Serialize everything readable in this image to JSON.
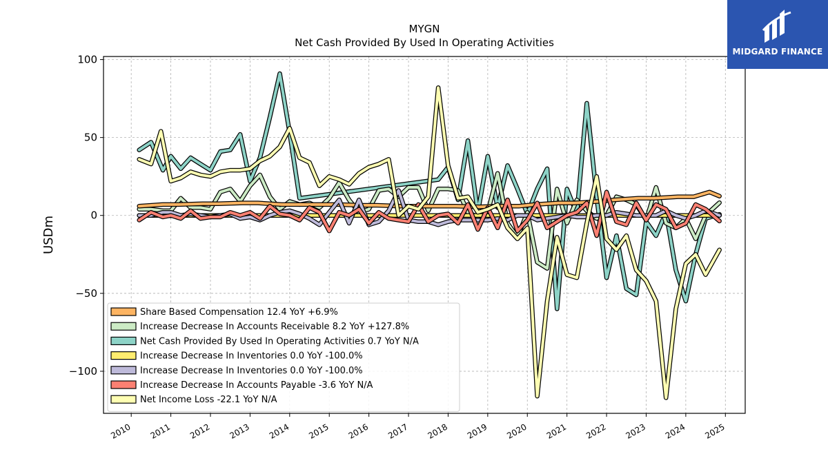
{
  "brand": {
    "name": "MIDGARD FINANCE",
    "icon": "midgard-logo-icon",
    "color": "#2b55b0"
  },
  "chart_data": {
    "type": "line",
    "title": "MYGN",
    "subtitle": "Net Cash Provided By Used In Operating Activities",
    "ylabel": "USDm",
    "xlabel": "",
    "xlim": [
      2009.3,
      2025.5
    ],
    "ylim": [
      -127,
      102
    ],
    "x_ticks": [
      2010,
      2011,
      2012,
      2013,
      2014,
      2015,
      2016,
      2017,
      2018,
      2019,
      2020,
      2021,
      2022,
      2023,
      2024,
      2025
    ],
    "y_ticks": [
      100,
      50,
      0,
      -50,
      -100
    ],
    "y_tick_labels": [
      "100",
      "50",
      "0",
      "−50",
      "−100"
    ],
    "grid": true,
    "legend_position": "lower-left",
    "series": [
      {
        "name": "Share Based Compensation  12.4 YoY +6.9%",
        "color": "#fdb462",
        "x": [
          2010.2,
          2010.8,
          2011.2,
          2011.8,
          2012.2,
          2012.8,
          2013.2,
          2013.8,
          2014.2,
          2014.8,
          2015.2,
          2015.8,
          2016.2,
          2016.8,
          2017.2,
          2017.8,
          2018.2,
          2018.8,
          2019.2,
          2019.8,
          2020.2,
          2020.8,
          2021.2,
          2021.8,
          2022.2,
          2022.8,
          2023.2,
          2023.8,
          2024.2,
          2024.6,
          2024.85
        ],
        "y": [
          6,
          7,
          7,
          7.5,
          7.5,
          8,
          8,
          7,
          7,
          7,
          7,
          6.5,
          6.5,
          6,
          6,
          6,
          6,
          5.5,
          6,
          6,
          7,
          8,
          8,
          9,
          10,
          11,
          11,
          12,
          12,
          15,
          12.4
        ]
      },
      {
        "name": "Increase Decrease In Accounts Receivable  8.2 YoY +127.8%",
        "color": "#ccebc5",
        "x": [
          2010.2,
          2010.5,
          2010.8,
          2011.0,
          2011.25,
          2011.5,
          2011.75,
          2012.0,
          2012.25,
          2012.5,
          2012.75,
          2013.0,
          2013.25,
          2013.5,
          2013.75,
          2014.0,
          2014.25,
          2014.5,
          2014.75,
          2015.0,
          2015.25,
          2015.5,
          2015.75,
          2016.0,
          2016.25,
          2016.5,
          2016.75,
          2017.0,
          2017.25,
          2017.5,
          2017.75,
          2018.0,
          2018.25,
          2018.5,
          2018.75,
          2019.0,
          2019.25,
          2019.5,
          2019.75,
          2020.0,
          2020.25,
          2020.5,
          2020.75,
          2021.0,
          2021.25,
          2021.5,
          2021.75,
          2022.0,
          2022.25,
          2022.5,
          2022.75,
          2023.0,
          2023.25,
          2023.5,
          2023.75,
          2024.0,
          2024.25,
          2024.5,
          2024.85
        ],
        "y": [
          4,
          4,
          3,
          3,
          11,
          5,
          5,
          4,
          15,
          17,
          9,
          19,
          26,
          12,
          4,
          9,
          7,
          8,
          5,
          11,
          21,
          10,
          2,
          4,
          16,
          17,
          12,
          18,
          18,
          3,
          17,
          17,
          16,
          2,
          -1,
          2,
          27,
          -5,
          -14,
          2,
          -30,
          -34,
          17,
          -5,
          10,
          3,
          -2,
          0,
          12,
          10,
          7,
          -3,
          18,
          -5,
          -8,
          -2,
          -15,
          0,
          8.2
        ]
      },
      {
        "name": "Net Cash Provided By Used In Operating Activities  0.7 YoY N/A",
        "color": "#8dd3c7",
        "x": [
          2010.2,
          2010.5,
          2010.8,
          2011.0,
          2011.25,
          2011.5,
          2011.75,
          2012.0,
          2012.25,
          2012.5,
          2012.75,
          2013.0,
          2013.25,
          2013.5,
          2013.75,
          2014.0,
          2014.25,
          2017.75,
          2018.0,
          2018.25,
          2018.5,
          2018.75,
          2019.0,
          2019.25,
          2019.5,
          2019.75,
          2020.0,
          2020.25,
          2020.5,
          2020.75,
          2021.0,
          2021.25,
          2021.5,
          2021.75,
          2022.0,
          2022.25,
          2022.5,
          2022.75,
          2023.0,
          2023.25,
          2023.5,
          2023.75,
          2024.0,
          2024.25,
          2024.5,
          2024.85
        ],
        "y": [
          42,
          47,
          29,
          38,
          30,
          37,
          33,
          29,
          41,
          42,
          52,
          22,
          37,
          63,
          91,
          53,
          11,
          23,
          31,
          10,
          48,
          2,
          38,
          5,
          32,
          17,
          1,
          17,
          30,
          -60,
          17,
          1,
          72,
          12,
          -40,
          -13,
          -47,
          -51,
          -4,
          -13,
          2,
          -35,
          -55,
          -25,
          -2,
          0.7
        ]
      },
      {
        "name": "Increase Decrease In Inventories  0.0 YoY -100.0%",
        "color": "#ffed6f",
        "x": [
          2010.2,
          2024.85
        ],
        "y": [
          0,
          0
        ]
      },
      {
        "name": "Increase Decrease In Inventories  0.0 YoY -100.0%",
        "color": "#bebada",
        "x": [
          2010.2,
          2010.5,
          2010.8,
          2011.0,
          2011.25,
          2011.5,
          2011.75,
          2012.0,
          2012.25,
          2012.5,
          2012.75,
          2013.0,
          2013.25,
          2013.5,
          2013.75,
          2014.0,
          2014.25,
          2014.5,
          2014.75,
          2015.0,
          2015.25,
          2015.5,
          2015.75,
          2016.0,
          2016.25,
          2016.5,
          2016.75,
          2017.0,
          2017.25,
          2017.5,
          2017.75,
          2018.0,
          2018.25,
          2018.5,
          2018.75,
          2019.0,
          2019.25,
          2019.5,
          2019.75,
          2020.0,
          2020.25,
          2020.5,
          2020.75,
          2021.0,
          2021.25,
          2021.5,
          2021.75,
          2022.0,
          2022.25,
          2022.5,
          2022.75,
          2023.0,
          2023.25,
          2023.5,
          2023.75,
          2024.0,
          2024.25,
          2024.5,
          2024.85
        ],
        "y": [
          0,
          0,
          2,
          2,
          0,
          1,
          0,
          -1,
          0,
          1,
          -2,
          -1,
          -3,
          0,
          2,
          3,
          1,
          -2,
          -6,
          2,
          10,
          -5,
          10,
          -6,
          -4,
          3,
          16,
          -3,
          -4,
          -4,
          -6,
          -4,
          -3,
          -3,
          -3,
          -3,
          -2,
          -3,
          0,
          0,
          -3,
          -2,
          -1,
          0,
          -1,
          -1,
          0,
          0,
          2,
          1,
          0,
          0,
          0,
          3,
          0,
          -2,
          0,
          3,
          0
        ]
      },
      {
        "name": "Increase Decrease In Accounts Payable  -3.6 YoY N/A",
        "color": "#fb8072",
        "x": [
          2010.2,
          2010.5,
          2010.8,
          2011.0,
          2011.25,
          2011.5,
          2011.75,
          2012.0,
          2012.25,
          2012.5,
          2012.75,
          2013.0,
          2013.25,
          2013.5,
          2013.75,
          2014.0,
          2014.25,
          2014.5,
          2014.75,
          2015.0,
          2015.25,
          2015.5,
          2015.75,
          2016.0,
          2016.25,
          2016.5,
          2016.75,
          2017.0,
          2017.25,
          2017.5,
          2017.75,
          2018.0,
          2018.25,
          2018.5,
          2018.75,
          2019.0,
          2019.25,
          2019.5,
          2019.75,
          2020.0,
          2020.25,
          2020.5,
          2020.75,
          2021.0,
          2021.25,
          2021.5,
          2021.75,
          2022.0,
          2022.25,
          2022.5,
          2022.75,
          2023.0,
          2023.25,
          2023.5,
          2023.75,
          2024.0,
          2024.25,
          2024.5,
          2024.85
        ],
        "y": [
          -3,
          2,
          -1,
          0,
          -2,
          3,
          -2,
          -1,
          -1,
          2,
          0,
          2,
          -2,
          6,
          1,
          0,
          -3,
          5,
          2,
          -10,
          2,
          0,
          4,
          -5,
          2,
          -2,
          -3,
          -4,
          7,
          -4,
          0,
          1,
          -5,
          7,
          -9,
          5,
          -8,
          10,
          -10,
          -3,
          8,
          -8,
          -4,
          0,
          2,
          8,
          -13,
          15,
          -4,
          -6,
          8,
          -3,
          7,
          4,
          -8,
          -5,
          7,
          4,
          -3.6
        ]
      },
      {
        "name": "Net Income Loss  -22.1 YoY N/A",
        "color": "#ffffb3",
        "x": [
          2010.2,
          2010.5,
          2010.75,
          2011.0,
          2011.25,
          2011.5,
          2011.75,
          2012.0,
          2012.25,
          2012.5,
          2012.75,
          2013.0,
          2013.25,
          2013.5,
          2013.75,
          2014.0,
          2014.25,
          2014.5,
          2014.75,
          2015.0,
          2015.25,
          2015.5,
          2015.75,
          2016.0,
          2016.25,
          2016.5,
          2016.75,
          2017.0,
          2017.25,
          2017.5,
          2017.75,
          2018.0,
          2018.25,
          2018.5,
          2018.75,
          2019.0,
          2019.25,
          2019.5,
          2019.75,
          2020.0,
          2020.25,
          2020.5,
          2020.75,
          2021.0,
          2021.25,
          2021.5,
          2021.75,
          2022.0,
          2022.25,
          2022.5,
          2022.75,
          2023.0,
          2023.25,
          2023.5,
          2023.75,
          2024.0,
          2024.25,
          2024.5,
          2024.85
        ],
        "y": [
          36,
          33,
          54,
          22,
          24,
          28,
          26,
          25,
          28,
          29,
          29,
          30,
          35,
          38,
          44,
          56,
          37,
          34,
          19,
          25,
          23,
          20,
          27,
          31,
          33,
          36,
          0,
          6,
          4,
          12,
          82,
          32,
          11,
          12,
          2,
          4,
          7,
          -8,
          -15,
          -8,
          -116,
          -55,
          -14,
          -38,
          -40,
          -5,
          25,
          -15,
          -22,
          -13,
          -35,
          -42,
          -55,
          -117,
          -60,
          -31,
          -25,
          -38,
          -22.1
        ]
      }
    ],
    "legend_order": [
      0,
      1,
      2,
      3,
      4,
      5,
      6
    ],
    "draw_order": [
      2,
      1,
      0,
      3,
      4,
      5,
      6
    ]
  }
}
